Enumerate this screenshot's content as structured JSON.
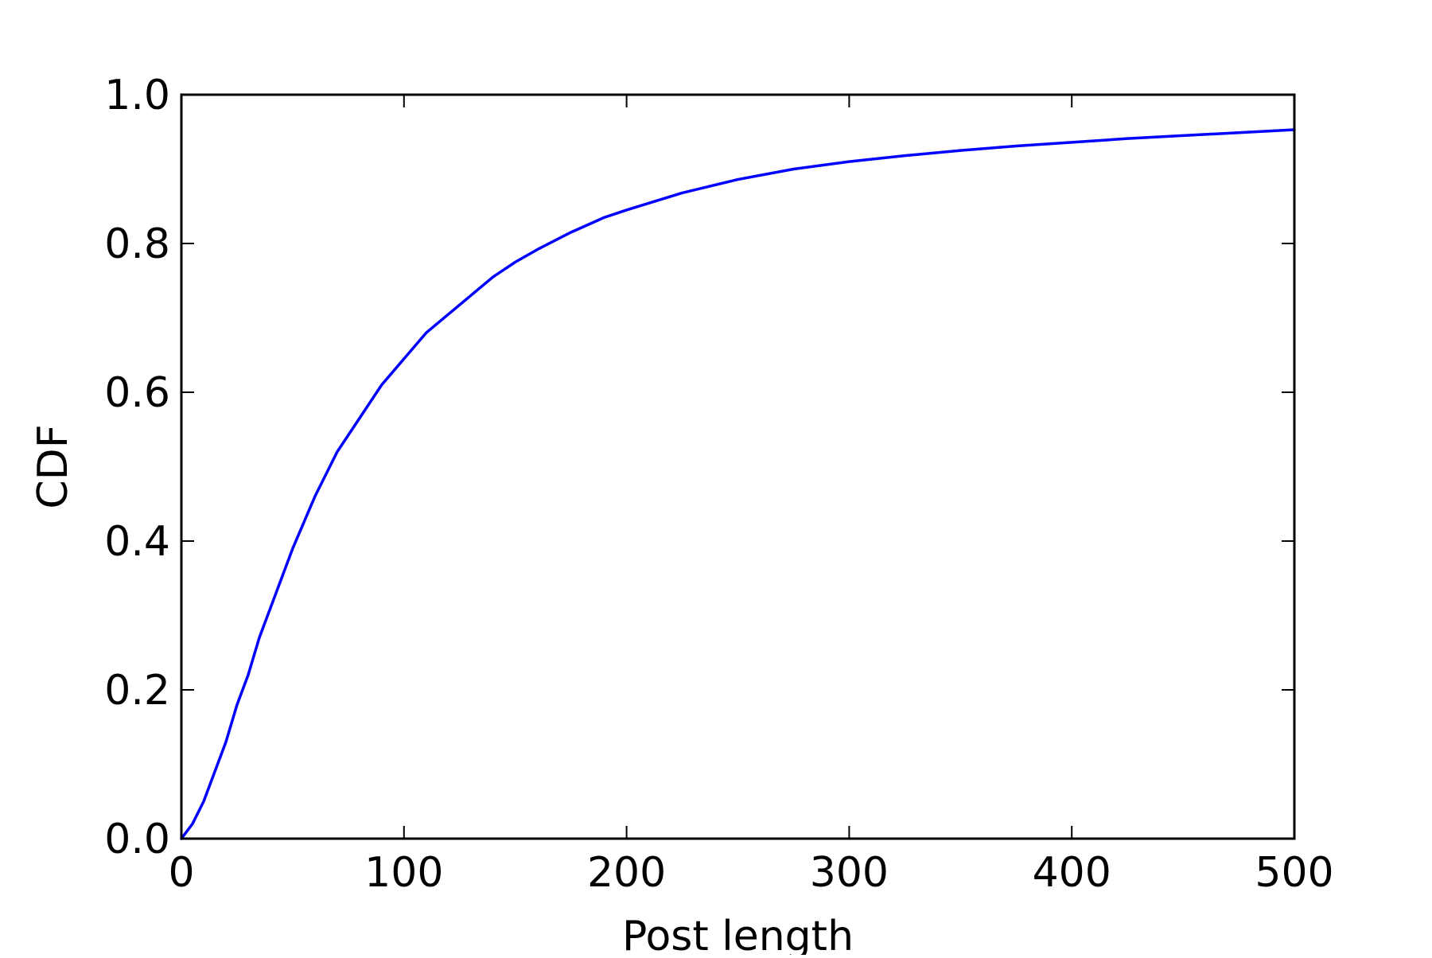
{
  "chart_data": {
    "type": "line",
    "title": "",
    "xlabel": "Post length",
    "ylabel": "CDF",
    "xlim": [
      0,
      500
    ],
    "ylim": [
      0.0,
      1.0
    ],
    "grid": false,
    "x_ticks": [
      0,
      100,
      200,
      300,
      400,
      500
    ],
    "x_tick_labels": [
      "0",
      "100",
      "200",
      "300",
      "400",
      "500"
    ],
    "y_ticks": [
      0.0,
      0.2,
      0.4,
      0.6,
      0.8,
      1.0
    ],
    "y_tick_labels": [
      "0.0",
      "0.2",
      "0.4",
      "0.6",
      "0.8",
      "1.0"
    ],
    "series": [
      {
        "color": "#0000ff",
        "x": [
          0,
          5,
          10,
          15,
          20,
          25,
          30,
          35,
          40,
          45,
          50,
          60,
          70,
          80,
          90,
          100,
          110,
          120,
          130,
          140,
          150,
          160,
          175,
          190,
          200,
          225,
          250,
          275,
          300,
          325,
          350,
          375,
          400,
          425,
          450,
          475,
          500
        ],
        "y": [
          0.0,
          0.02,
          0.05,
          0.09,
          0.13,
          0.18,
          0.22,
          0.27,
          0.31,
          0.35,
          0.39,
          0.46,
          0.52,
          0.565,
          0.61,
          0.645,
          0.68,
          0.705,
          0.73,
          0.755,
          0.775,
          0.792,
          0.815,
          0.835,
          0.845,
          0.868,
          0.886,
          0.9,
          0.91,
          0.918,
          0.925,
          0.931,
          0.936,
          0.941,
          0.945,
          0.949,
          0.953
        ]
      }
    ]
  }
}
